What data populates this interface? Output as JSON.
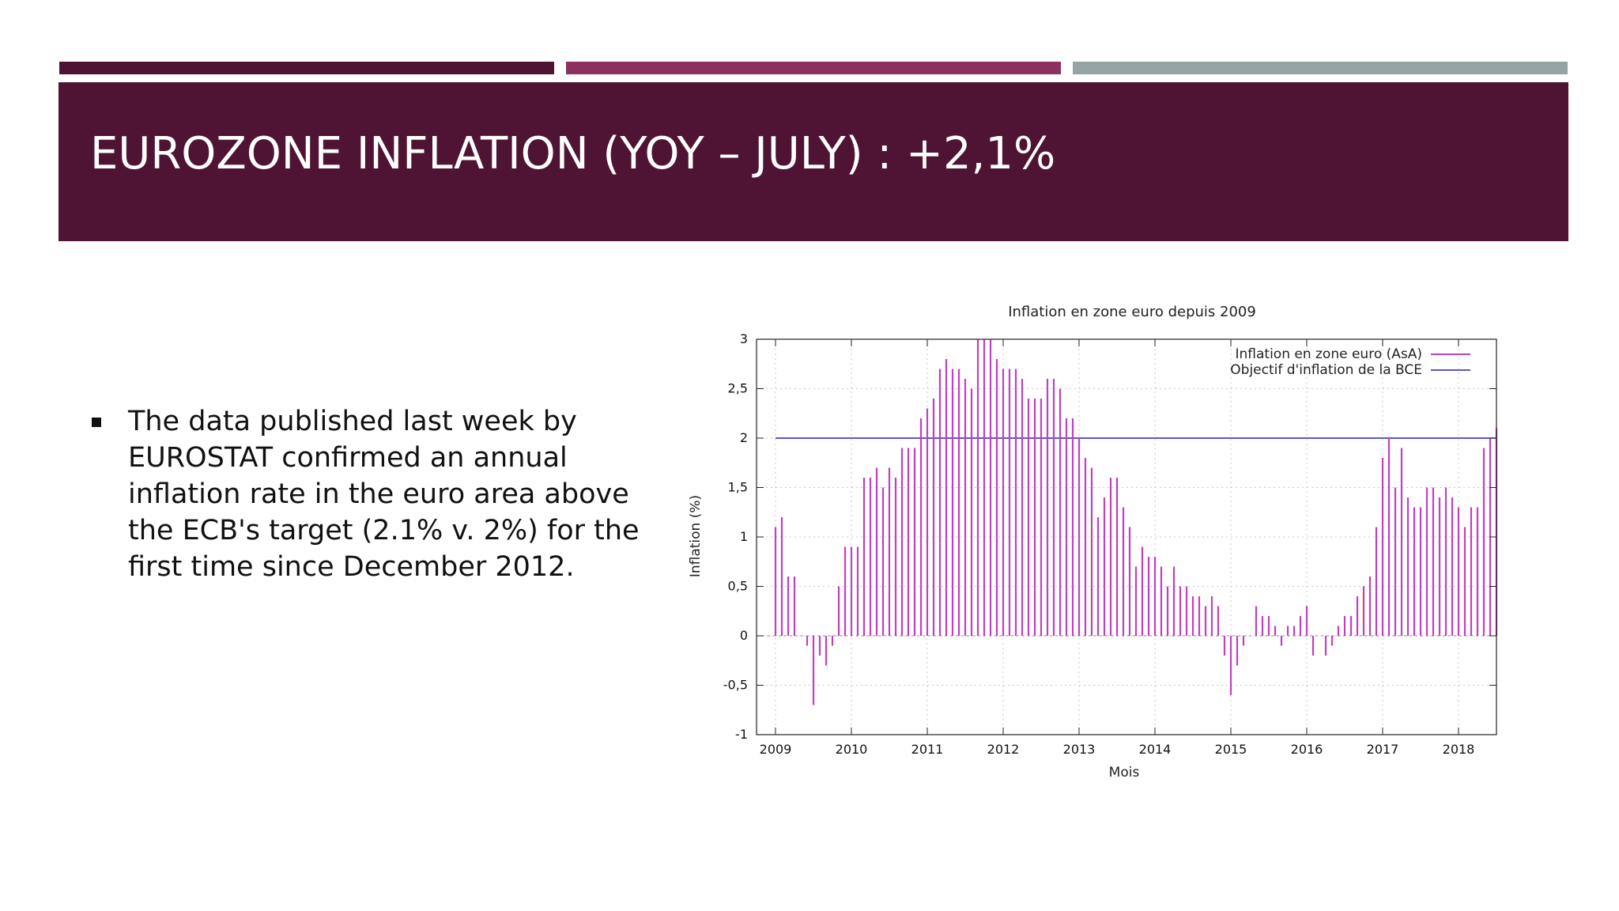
{
  "slide": {
    "title": "EUROZONE INFLATION (YOY – JULY) : +2,1%",
    "bullet": "The data published last week by EUROSTAT confirmed an annual inflation rate in the euro area above the ECB's target (2.1% v. 2%) for the first time since December 2012.",
    "accent_colors": [
      "#4f1433",
      "#8c2f61",
      "#95a3a4"
    ]
  },
  "chart_data": {
    "type": "bar",
    "title": "Inflation en zone euro depuis 2009",
    "xlabel": "Mois",
    "ylabel": "Inflation (%)",
    "xlim": [
      "2009-01",
      "2018-12"
    ],
    "ylim": [
      -1,
      3
    ],
    "y_ticks": [
      "-1",
      "-0,5",
      "0",
      "0,5",
      "1",
      "1,5",
      "2",
      "2,5",
      "3"
    ],
    "y_tick_values": [
      -1,
      -0.5,
      0,
      0.5,
      1,
      1.5,
      2,
      2.5,
      3
    ],
    "x_ticks": [
      "2009",
      "2010",
      "2011",
      "2012",
      "2013",
      "2014",
      "2015",
      "2016",
      "2017",
      "2018"
    ],
    "grid": true,
    "legend_position": "top-right",
    "series": [
      {
        "name": "Inflation en zone euro (AsA)",
        "style": "impulses",
        "color": "#c040c0",
        "start": "2009-01",
        "frequency": "monthly",
        "values": [
          1.1,
          1.2,
          0.6,
          0.6,
          0.0,
          -0.1,
          -0.7,
          -0.2,
          -0.3,
          -0.1,
          0.5,
          0.9,
          0.9,
          0.9,
          1.6,
          1.6,
          1.7,
          1.5,
          1.7,
          1.6,
          1.9,
          1.9,
          1.9,
          2.2,
          2.3,
          2.4,
          2.7,
          2.8,
          2.7,
          2.7,
          2.6,
          2.5,
          3.0,
          3.0,
          3.0,
          2.8,
          2.7,
          2.7,
          2.7,
          2.6,
          2.4,
          2.4,
          2.4,
          2.6,
          2.6,
          2.5,
          2.2,
          2.2,
          2.0,
          1.8,
          1.7,
          1.2,
          1.4,
          1.6,
          1.6,
          1.3,
          1.1,
          0.7,
          0.9,
          0.8,
          0.8,
          0.7,
          0.5,
          0.7,
          0.5,
          0.5,
          0.4,
          0.4,
          0.3,
          0.4,
          0.3,
          -0.2,
          -0.6,
          -0.3,
          -0.1,
          0.0,
          0.3,
          0.2,
          0.2,
          0.1,
          -0.1,
          0.1,
          0.1,
          0.2,
          0.3,
          -0.2,
          0.0,
          -0.2,
          -0.1,
          0.1,
          0.2,
          0.2,
          0.4,
          0.5,
          0.6,
          1.1,
          1.8,
          2.0,
          1.5,
          1.9,
          1.4,
          1.3,
          1.3,
          1.5,
          1.5,
          1.4,
          1.5,
          1.4,
          1.3,
          1.1,
          1.3,
          1.3,
          1.9,
          2.0,
          2.1
        ]
      },
      {
        "name": "Objectif d'inflation de la BCE",
        "style": "line",
        "color": "#2020c0",
        "x": [
          "2009-01",
          "2018-07"
        ],
        "values": [
          2,
          2
        ]
      }
    ]
  }
}
